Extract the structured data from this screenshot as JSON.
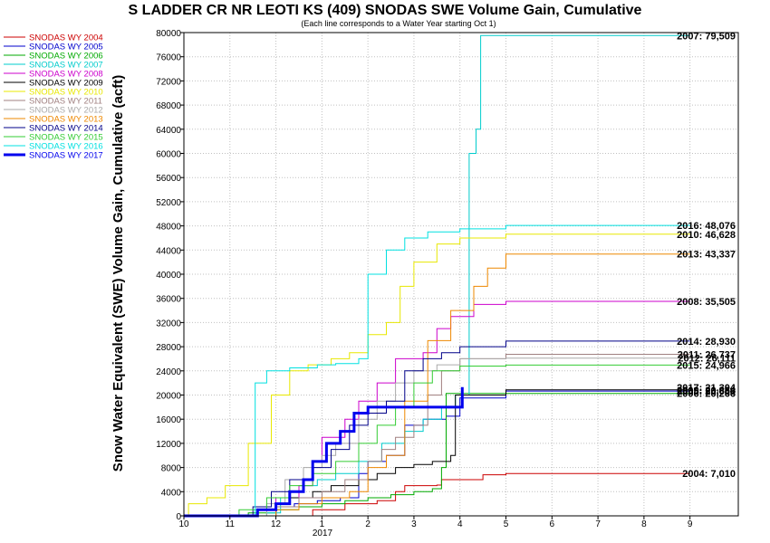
{
  "chart_data": {
    "type": "line",
    "title": "S LADDER CR NR LEOTI KS (409) SNODAS SWE Volume Gain, Cumulative",
    "subtitle": "(Each line corresponds to a Water Year starting Oct 1)",
    "ylabel": "Snow Water Equivalent (SWE) Volume Gain, Cumulative (acft)",
    "xlabel": "",
    "x_year_label": "2017",
    "xlim": [
      10,
      10.99
    ],
    "x_ticks": [
      10,
      11,
      12,
      1,
      2,
      3,
      4,
      5,
      6,
      7,
      8,
      9
    ],
    "ylim": [
      0,
      80000
    ],
    "y_ticks": [
      0,
      4000,
      8000,
      12000,
      16000,
      20000,
      24000,
      28000,
      32000,
      36000,
      40000,
      44000,
      48000,
      52000,
      56000,
      60000,
      64000,
      68000,
      72000,
      76000,
      80000
    ],
    "grid": true,
    "legend_placement": "left",
    "series": [
      {
        "name": "SNODAS WY 2004",
        "color": "#cc0000",
        "width": 1,
        "end_label": "2004: 7,010",
        "points": [
          [
            10,
            0
          ],
          [
            12.5,
            0
          ],
          [
            12.8,
            1000
          ],
          [
            1.5,
            2000
          ],
          [
            2.2,
            2500
          ],
          [
            2.6,
            4000
          ],
          [
            2.8,
            5000
          ],
          [
            3.5,
            5100
          ],
          [
            3.6,
            6000
          ],
          [
            4.5,
            6800
          ],
          [
            5.0,
            7010
          ],
          [
            9.0,
            7010
          ]
        ]
      },
      {
        "name": "SNODAS WY 2005",
        "color": "#0000cc",
        "width": 1,
        "end_label": "2005: 20,660",
        "points": [
          [
            10,
            0
          ],
          [
            11.8,
            0
          ],
          [
            12.0,
            1500
          ],
          [
            12.4,
            2000
          ],
          [
            12.9,
            2500
          ],
          [
            1.4,
            3000
          ],
          [
            1.8,
            7000
          ],
          [
            2.0,
            9000
          ],
          [
            2.4,
            10000
          ],
          [
            2.8,
            15000
          ],
          [
            3.2,
            16000
          ],
          [
            3.7,
            16500
          ],
          [
            4.0,
            19500
          ],
          [
            5.0,
            20660
          ],
          [
            9.0,
            20660
          ]
        ]
      },
      {
        "name": "SNODAS WY 2006",
        "color": "#00aa00",
        "width": 1,
        "end_label": "2006: 20,266",
        "points": [
          [
            10,
            0
          ],
          [
            11.0,
            0
          ],
          [
            11.4,
            500
          ],
          [
            12.0,
            1000
          ],
          [
            12.5,
            1500
          ],
          [
            1.0,
            2000
          ],
          [
            1.5,
            2500
          ],
          [
            2.0,
            3000
          ],
          [
            2.5,
            3500
          ],
          [
            3.0,
            4000
          ],
          [
            3.4,
            4500
          ],
          [
            3.6,
            8000
          ],
          [
            3.7,
            20266
          ],
          [
            9.0,
            20266
          ]
        ]
      },
      {
        "name": "SNODAS WY 2007",
        "color": "#00cccc",
        "width": 1,
        "end_label": "2007: 79,509",
        "points": [
          [
            10,
            0
          ],
          [
            11.5,
            0
          ],
          [
            11.8,
            500
          ],
          [
            12.1,
            3000
          ],
          [
            12.5,
            5000
          ],
          [
            12.9,
            6000
          ],
          [
            1.3,
            7000
          ],
          [
            1.8,
            9000
          ],
          [
            2.3,
            12000
          ],
          [
            2.8,
            14000
          ],
          [
            3.2,
            16000
          ],
          [
            3.6,
            18000
          ],
          [
            3.9,
            20000
          ],
          [
            4.2,
            60000
          ],
          [
            4.35,
            64000
          ],
          [
            4.45,
            79509
          ],
          [
            9.0,
            79509
          ]
        ]
      },
      {
        "name": "SNODAS WY 2008",
        "color": "#cc00cc",
        "width": 1,
        "end_label": "2008: 35,505",
        "points": [
          [
            10,
            0
          ],
          [
            11.3,
            0
          ],
          [
            11.6,
            1000
          ],
          [
            12.0,
            3000
          ],
          [
            12.5,
            5000
          ],
          [
            12.8,
            9000
          ],
          [
            1.0,
            13000
          ],
          [
            1.5,
            16000
          ],
          [
            1.8,
            19000
          ],
          [
            2.2,
            22000
          ],
          [
            2.6,
            26000
          ],
          [
            3.2,
            27000
          ],
          [
            3.5,
            31000
          ],
          [
            3.8,
            33000
          ],
          [
            4.3,
            35000
          ],
          [
            5.0,
            35505
          ],
          [
            9.0,
            35505
          ]
        ]
      },
      {
        "name": "SNODAS WY 2009",
        "color": "#000000",
        "width": 1,
        "end_label": "2009: 20,854",
        "points": [
          [
            10,
            0
          ],
          [
            11.5,
            0
          ],
          [
            12.0,
            2000
          ],
          [
            12.3,
            3000
          ],
          [
            12.8,
            4000
          ],
          [
            1.2,
            5000
          ],
          [
            1.8,
            6000
          ],
          [
            2.2,
            7000
          ],
          [
            2.6,
            8000
          ],
          [
            3.0,
            8500
          ],
          [
            3.4,
            9000
          ],
          [
            3.8,
            10000
          ],
          [
            3.9,
            20000
          ],
          [
            5.0,
            20854
          ],
          [
            9.0,
            20854
          ]
        ]
      },
      {
        "name": "SNODAS WY 2010",
        "color": "#e8e800",
        "width": 1,
        "end_label": "2010: 46,628",
        "points": [
          [
            10,
            0
          ],
          [
            10.1,
            2000
          ],
          [
            10.5,
            3000
          ],
          [
            10.9,
            5000
          ],
          [
            11.4,
            12000
          ],
          [
            11.9,
            20000
          ],
          [
            12.3,
            24000
          ],
          [
            12.7,
            25000
          ],
          [
            1.2,
            26000
          ],
          [
            1.6,
            27000
          ],
          [
            2.0,
            30000
          ],
          [
            2.4,
            32000
          ],
          [
            2.7,
            38000
          ],
          [
            3.0,
            42000
          ],
          [
            3.5,
            45000
          ],
          [
            4.0,
            46000
          ],
          [
            5.0,
            46628
          ],
          [
            9.0,
            46628
          ]
        ]
      },
      {
        "name": "SNODAS WY 2011",
        "color": "#a08080",
        "width": 1,
        "end_label": "2011: 26,737",
        "points": [
          [
            10,
            0
          ],
          [
            11.5,
            0
          ],
          [
            12.0,
            1500
          ],
          [
            12.5,
            3000
          ],
          [
            1.0,
            4000
          ],
          [
            1.5,
            6000
          ],
          [
            2.0,
            9000
          ],
          [
            2.3,
            11000
          ],
          [
            2.6,
            13000
          ],
          [
            3.0,
            15000
          ],
          [
            3.3,
            20000
          ],
          [
            3.6,
            24000
          ],
          [
            4.0,
            26000
          ],
          [
            5.0,
            26737
          ],
          [
            9.0,
            26737
          ]
        ]
      },
      {
        "name": "SNODAS WY 2012",
        "color": "#aaaaaa",
        "width": 1,
        "end_label": "2012: 26,111",
        "points": [
          [
            10,
            0
          ],
          [
            11.2,
            0
          ],
          [
            11.8,
            2000
          ],
          [
            12.2,
            6000
          ],
          [
            12.6,
            8000
          ],
          [
            1.0,
            10000
          ],
          [
            1.3,
            12000
          ],
          [
            1.8,
            16000
          ],
          [
            2.2,
            19000
          ],
          [
            2.6,
            22000
          ],
          [
            3.0,
            24000
          ],
          [
            3.5,
            25000
          ],
          [
            4.0,
            26000
          ],
          [
            5.0,
            26111
          ],
          [
            9.0,
            26111
          ]
        ]
      },
      {
        "name": "SNODAS WY 2013",
        "color": "#ee8800",
        "width": 1,
        "end_label": "2013: 43,337",
        "points": [
          [
            10,
            0
          ],
          [
            11.6,
            0
          ],
          [
            12.0,
            1000
          ],
          [
            12.5,
            2000
          ],
          [
            1.0,
            3000
          ],
          [
            1.6,
            4000
          ],
          [
            2.0,
            8000
          ],
          [
            2.4,
            10000
          ],
          [
            2.8,
            19000
          ],
          [
            3.3,
            29000
          ],
          [
            3.8,
            34000
          ],
          [
            4.3,
            38000
          ],
          [
            4.6,
            41000
          ],
          [
            5.0,
            43337
          ],
          [
            9.0,
            43337
          ]
        ]
      },
      {
        "name": "SNODAS WY 2014",
        "color": "#000088",
        "width": 1,
        "end_label": "2014: 28,930",
        "points": [
          [
            10,
            0
          ],
          [
            11.2,
            0
          ],
          [
            11.5,
            1500
          ],
          [
            11.9,
            4000
          ],
          [
            12.3,
            6000
          ],
          [
            12.8,
            8000
          ],
          [
            1.2,
            11000
          ],
          [
            1.6,
            15000
          ],
          [
            2.0,
            17000
          ],
          [
            2.4,
            19000
          ],
          [
            2.8,
            24000
          ],
          [
            3.2,
            26000
          ],
          [
            3.6,
            27000
          ],
          [
            4.0,
            28000
          ],
          [
            5.0,
            28930
          ],
          [
            9.0,
            28930
          ]
        ]
      },
      {
        "name": "SNODAS WY 2015",
        "color": "#33cc33",
        "width": 1,
        "end_label": "2015: 24,966",
        "points": [
          [
            10,
            0
          ],
          [
            10.8,
            0
          ],
          [
            11.2,
            1000
          ],
          [
            11.8,
            3000
          ],
          [
            12.3,
            5000
          ],
          [
            12.8,
            7000
          ],
          [
            1.3,
            9000
          ],
          [
            1.8,
            12000
          ],
          [
            2.2,
            15000
          ],
          [
            2.6,
            18000
          ],
          [
            3.0,
            22000
          ],
          [
            3.4,
            24000
          ],
          [
            4.0,
            24800
          ],
          [
            5.0,
            24966
          ],
          [
            9.0,
            24966
          ]
        ]
      },
      {
        "name": "SNODAS WY 2016",
        "color": "#00e0e0",
        "width": 1,
        "end_label": "2016: 48,076",
        "points": [
          [
            10,
            0
          ],
          [
            11.4,
            0
          ],
          [
            11.55,
            22000
          ],
          [
            11.8,
            24000
          ],
          [
            12.3,
            24500
          ],
          [
            12.9,
            25000
          ],
          [
            1.3,
            25200
          ],
          [
            1.8,
            26000
          ],
          [
            2.0,
            40000
          ],
          [
            2.4,
            44000
          ],
          [
            2.8,
            46000
          ],
          [
            3.3,
            47000
          ],
          [
            4.0,
            47500
          ],
          [
            5.0,
            48076
          ],
          [
            9.0,
            48076
          ]
        ]
      },
      {
        "name": "SNODAS WY 2017",
        "color": "#0000ee",
        "width": 3,
        "end_label": "2017: 21,304",
        "points": [
          [
            10,
            0
          ],
          [
            11.5,
            0
          ],
          [
            11.6,
            1000
          ],
          [
            12.0,
            2000
          ],
          [
            12.3,
            4000
          ],
          [
            12.6,
            6000
          ],
          [
            12.8,
            9000
          ],
          [
            1.1,
            12000
          ],
          [
            1.4,
            14000
          ],
          [
            1.7,
            17000
          ],
          [
            2.0,
            18000
          ],
          [
            2.5,
            18000
          ],
          [
            3.0,
            18000
          ],
          [
            3.5,
            18000
          ],
          [
            4.0,
            18000
          ],
          [
            4.05,
            21304
          ]
        ]
      }
    ]
  }
}
